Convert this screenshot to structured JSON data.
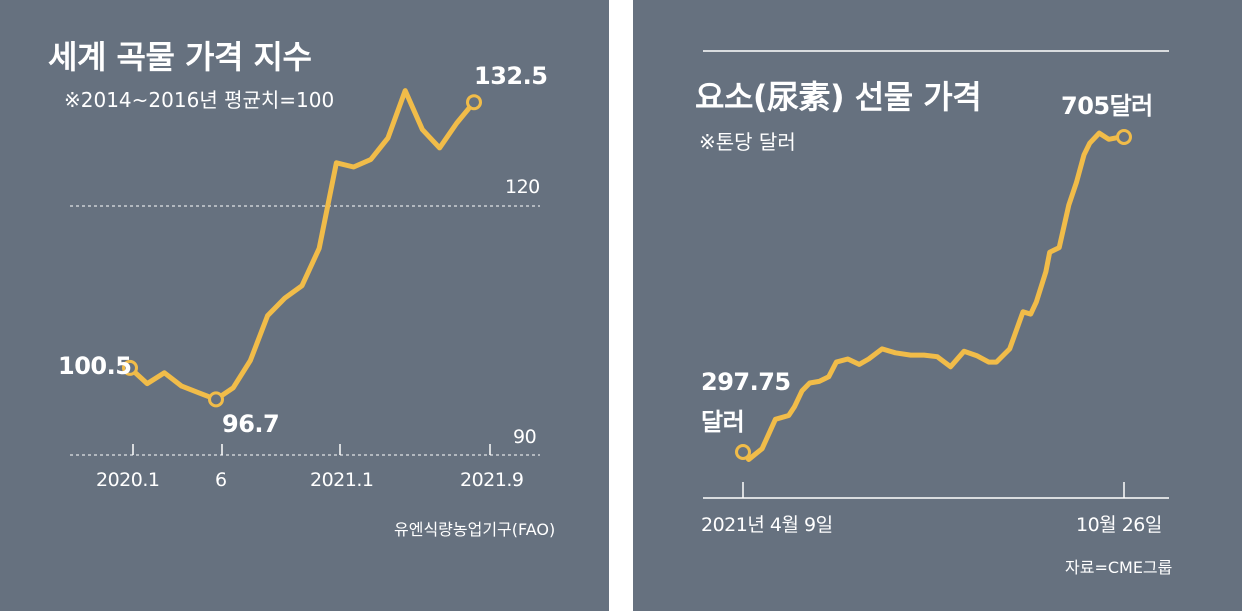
{
  "chart_data": [
    {
      "type": "line",
      "title": "세계 곡물 가격 지수",
      "subtitle": "※2014~2016년 평균치=100",
      "source": "유엔식량농업기구(FAO)",
      "x_tick_labels": [
        "2020.1",
        "6",
        "2021.1",
        "2021.9"
      ],
      "y_tick_labels": [
        "120",
        "90"
      ],
      "ylim": [
        90,
        132.5
      ],
      "reference_line": 120,
      "callouts": {
        "start": "100.5",
        "low": "96.7",
        "end": "132.5"
      },
      "series": [
        {
          "x": [
            "2020.1",
            "2020.2",
            "2020.3",
            "2020.4",
            "2020.5",
            "2020.6",
            "2020.7",
            "2020.8",
            "2020.9",
            "2020.10",
            "2020.11",
            "2020.12",
            "2021.1",
            "2021.2",
            "2021.3",
            "2021.4",
            "2021.5",
            "2021.6",
            "2021.7",
            "2021.8",
            "2021.9"
          ],
          "values": [
            100.5,
            98.6,
            99.9,
            98.3,
            97.5,
            96.7,
            98.1,
            101.4,
            106.8,
            108.9,
            110.4,
            114.9,
            125.2,
            124.7,
            125.6,
            128.2,
            133.9,
            129.2,
            127.0,
            130.0,
            132.5
          ]
        }
      ],
      "line_color": "#f1bc49"
    },
    {
      "type": "line",
      "title": "요소(尿素) 선물 가격",
      "subtitle": "※톤당 달러",
      "source": "자료=CME그룹",
      "x_tick_labels": [
        "2021년 4월 9일",
        "10월 26일"
      ],
      "callouts": {
        "start": "297.75",
        "start_unit": "달러",
        "end": "705달러"
      },
      "series": [
        {
          "x": [
            "2021-04-09",
            "2021-04-12",
            "2021-04-19",
            "2021-04-26",
            "2021-05-03",
            "2021-05-06",
            "2021-05-10",
            "2021-05-14",
            "2021-05-19",
            "2021-05-24",
            "2021-05-28",
            "2021-06-03",
            "2021-06-09",
            "2021-06-14",
            "2021-06-21",
            "2021-06-28",
            "2021-07-06",
            "2021-07-13",
            "2021-07-20",
            "2021-07-27",
            "2021-08-03",
            "2021-08-10",
            "2021-08-16",
            "2021-08-20",
            "2021-08-27",
            "2021-09-03",
            "2021-09-07",
            "2021-09-10",
            "2021-09-15",
            "2021-09-17",
            "2021-09-22",
            "2021-09-27",
            "2021-10-01",
            "2021-10-05",
            "2021-10-08",
            "2021-10-13",
            "2021-10-18",
            "2021-10-22",
            "2021-10-26"
          ],
          "values": [
            297.75,
            288,
            302,
            340,
            345,
            356,
            377,
            387,
            389,
            395,
            414,
            418,
            411,
            418,
            431,
            426,
            423,
            423,
            421,
            408,
            428,
            422,
            414,
            414,
            431,
            479,
            476,
            492,
            531,
            556,
            562,
            617,
            646,
            682,
            697,
            710,
            702,
            704,
            705
          ]
        }
      ],
      "line_color": "#f1bc49"
    }
  ]
}
